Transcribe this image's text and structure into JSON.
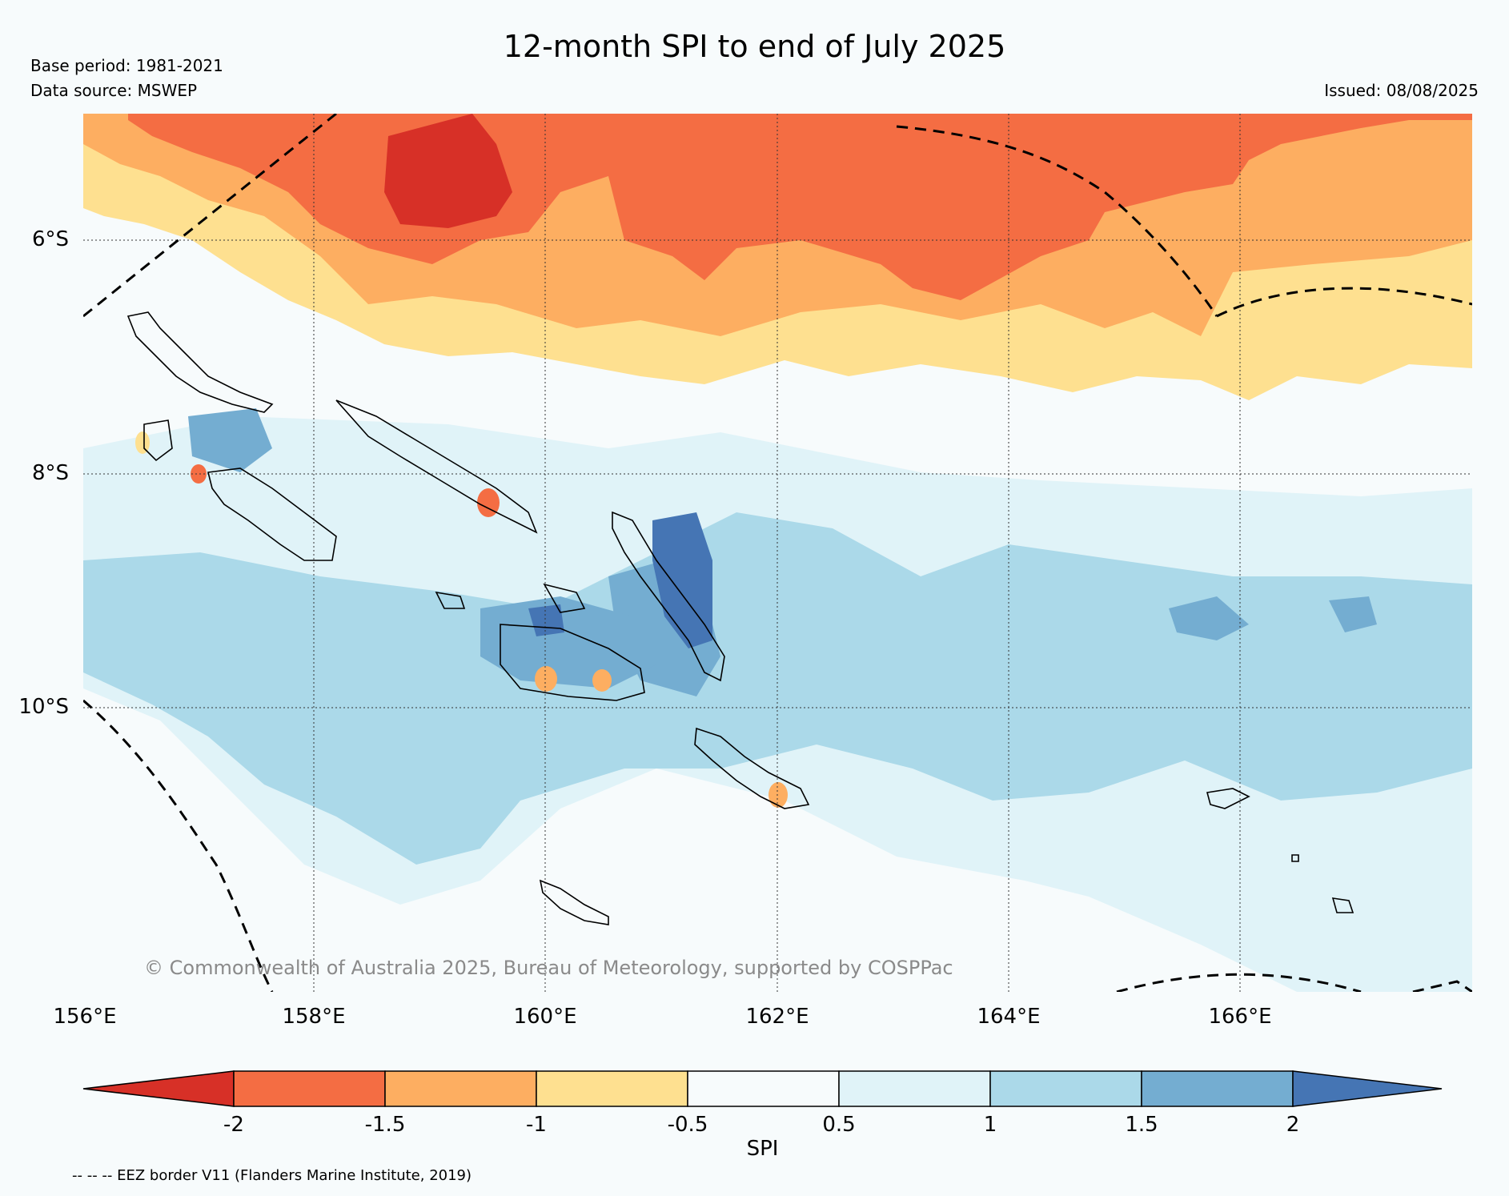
{
  "header": {
    "title": "12-month SPI to end of July 2025",
    "base_period": "Base period: 1981-2021",
    "data_source": "Data source: MSWEP",
    "issued": "Issued: 08/08/2025"
  },
  "map": {
    "lat_labels": [
      "6°S",
      "8°S",
      "10°S"
    ],
    "lon_labels": [
      "156°E",
      "158°E",
      "160°E",
      "162°E",
      "164°E",
      "166°E"
    ],
    "copyright": "© Commonwealth of Australia 2025, Bureau of Meteorology, supported by COSPPac"
  },
  "colorbar": {
    "label": "SPI",
    "ticks": [
      "-2",
      "-1.5",
      "-1",
      "-0.5",
      "0.5",
      "1",
      "1.5",
      "2"
    ],
    "colors": [
      "#d73027",
      "#f46d43",
      "#fdae61",
      "#fee090",
      "#f7fbfc",
      "#e0f3f8",
      "#abd9e9",
      "#74add1",
      "#4575b4"
    ]
  },
  "legend": {
    "eez_note": "-- -- -- EEZ border V11 (Flanders Marine Institute, 2019)"
  }
}
